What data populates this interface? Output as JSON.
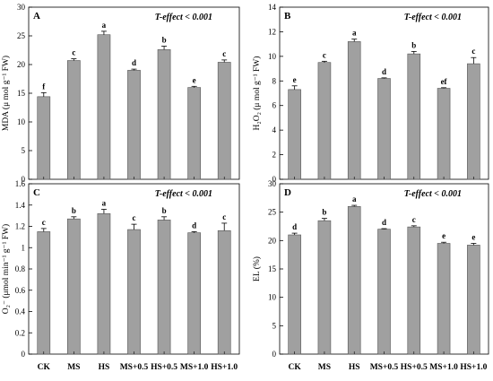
{
  "chart_data": [
    {
      "type": "bar",
      "panel_label": "A",
      "effect_text": "T-effect < 0.001",
      "ylabel": "MDA (μ mol g⁻¹ FW)",
      "ylim": [
        0,
        30
      ],
      "yticks": [
        0,
        5,
        10,
        15,
        20,
        25,
        30
      ],
      "ytick_labels": [
        "0",
        "5",
        "10",
        "15",
        "20",
        "25",
        "30"
      ],
      "categories": [
        "CK",
        "MS",
        "HS",
        "MS+0.5",
        "HS+0.5",
        "MS+1.0",
        "HS+1.0"
      ],
      "values": [
        14.4,
        20.7,
        25.2,
        19.0,
        22.6,
        16.0,
        20.4
      ],
      "errors": [
        0.7,
        0.3,
        0.6,
        0.2,
        0.6,
        0.2,
        0.4
      ],
      "letters": [
        "f",
        "c",
        "a",
        "d",
        "b",
        "e",
        "c"
      ]
    },
    {
      "type": "bar",
      "panel_label": "B",
      "effect_text": "T-effect < 0.001",
      "ylabel": "H₂O₂ (μ mol g⁻¹ FW)",
      "ylim": [
        0,
        14
      ],
      "yticks": [
        0,
        2,
        4,
        6,
        8,
        10,
        12,
        14
      ],
      "ytick_labels": [
        "0",
        "2",
        "4",
        "6",
        "8",
        "10",
        "12",
        "14"
      ],
      "categories": [
        "CK",
        "MS",
        "HS",
        "MS+0.5",
        "HS+0.5",
        "MS+1.0",
        "HS+1.0"
      ],
      "values": [
        7.3,
        9.5,
        11.2,
        8.2,
        10.2,
        7.4,
        9.4
      ],
      "errors": [
        0.3,
        0.1,
        0.2,
        0.05,
        0.2,
        0.05,
        0.5
      ],
      "letters": [
        "e",
        "c",
        "a",
        "d",
        "b",
        "ef",
        "c"
      ]
    },
    {
      "type": "bar",
      "panel_label": "C",
      "effect_text": "T-effect < 0.001",
      "ylabel": "O₂⁻ (μmol min⁻¹ g⁻¹ FW)",
      "ylim": [
        0,
        1.6
      ],
      "yticks": [
        0,
        0.2,
        0.4,
        0.6,
        0.8,
        1.0,
        1.2,
        1.4,
        1.6
      ],
      "ytick_labels": [
        "0",
        "0.2",
        "0.4",
        "0.6",
        "0.8",
        "1",
        "1.2",
        "1.4",
        "1.6"
      ],
      "categories": [
        "CK",
        "MS",
        "HS",
        "MS+0.5",
        "HS+0.5",
        "MS+1.0",
        "HS+1.0"
      ],
      "values": [
        1.15,
        1.27,
        1.32,
        1.17,
        1.26,
        1.14,
        1.16
      ],
      "errors": [
        0.03,
        0.02,
        0.04,
        0.05,
        0.03,
        0.01,
        0.07
      ],
      "letters": [
        "c",
        "b",
        "a",
        "c",
        "b",
        "d",
        "c"
      ]
    },
    {
      "type": "bar",
      "panel_label": "D",
      "effect_text": "T-effect < 0.001",
      "ylabel": "EL (%)",
      "ylim": [
        0,
        30
      ],
      "yticks": [
        0,
        5,
        10,
        15,
        20,
        25,
        30
      ],
      "ytick_labels": [
        "0",
        "5",
        "10",
        "15",
        "20",
        "25",
        "30"
      ],
      "categories": [
        "CK",
        "MS",
        "HS",
        "MS+0.5",
        "HS+0.5",
        "MS+1.0",
        "HS+1.0"
      ],
      "values": [
        21.0,
        23.5,
        26.0,
        22.0,
        22.4,
        19.5,
        19.2
      ],
      "errors": [
        0.3,
        0.4,
        0.2,
        0.1,
        0.2,
        0.2,
        0.3
      ],
      "letters": [
        "d",
        "b",
        "a",
        "d",
        "c",
        "e",
        "e"
      ]
    }
  ],
  "colors": {
    "bar_fill": "#a0a0a0",
    "bar_stroke": "#555555",
    "axis": "#000000"
  }
}
